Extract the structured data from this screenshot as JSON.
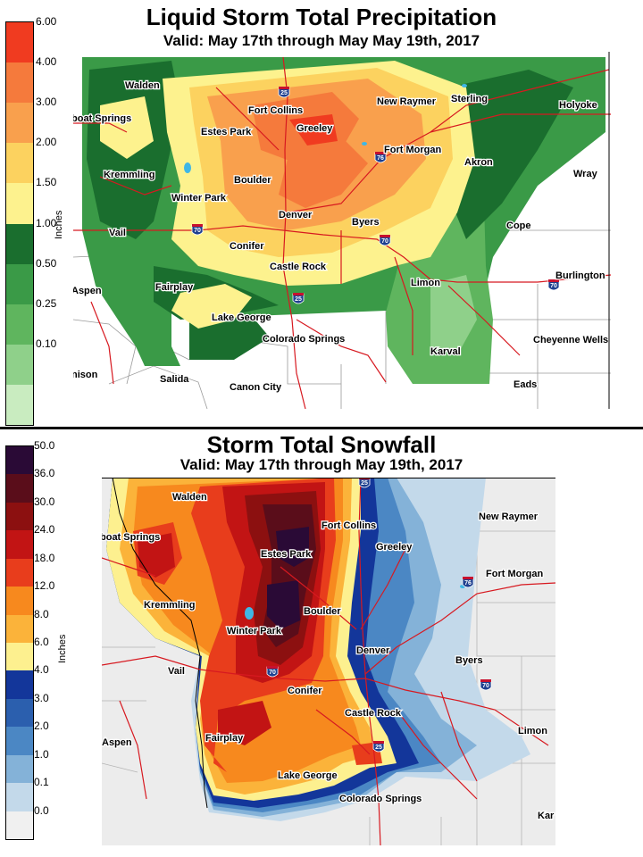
{
  "top": {
    "title": "Liquid Storm Total Precipitation",
    "subtitle": "Valid: May 17th through May May 19th, 2017",
    "unit": "Inches",
    "legend": [
      {
        "label": "6.00",
        "color": "#f03b20"
      },
      {
        "label": "4.00",
        "color": "#f57a3c"
      },
      {
        "label": "3.00",
        "color": "#f9a04d"
      },
      {
        "label": "2.00",
        "color": "#fcd25f"
      },
      {
        "label": "1.50",
        "color": "#fdf28e"
      },
      {
        "label": "1.00",
        "color": "#1a6e2e"
      },
      {
        "label": "0.50",
        "color": "#3a9a47"
      },
      {
        "label": "0.25",
        "color": "#5fb55e"
      },
      {
        "label": "0.10",
        "color": "#8fd08a"
      },
      {
        "label": "",
        "color": "#c9ecc0"
      }
    ],
    "cities": [
      "Walden",
      "boat Springs",
      "Fort Collins",
      "Greeley",
      "Estes Park",
      "New Raymer",
      "Sterling",
      "Holyoke",
      "Fort Morgan",
      "Akron",
      "Kremmling",
      "Boulder",
      "Wray",
      "Winter Park",
      "Denver",
      "Byers",
      "Vail",
      "Conifer",
      "Cope",
      "Castle Rock",
      "Burlington",
      "Aspen",
      "Fairplay",
      "Limon",
      "Lake George",
      "Colorado Springs",
      "Cheyenne Wells",
      "Karval",
      "nison",
      "Salida",
      "Canon City",
      "Eads"
    ],
    "shields": [
      "25",
      "76",
      "70",
      "70",
      "25",
      "70"
    ]
  },
  "bottom": {
    "title": "Storm Total Snowfall",
    "subtitle": "Valid: May 17th through May 19th, 2017",
    "unit": "Inches",
    "legend": [
      {
        "label": "50.0",
        "color": "#2a0a36"
      },
      {
        "label": "36.0",
        "color": "#5a0d1a"
      },
      {
        "label": "30.0",
        "color": "#8c1010"
      },
      {
        "label": "24.0",
        "color": "#c21414"
      },
      {
        "label": "18.0",
        "color": "#e83d1c"
      },
      {
        "label": "12.0",
        "color": "#f7891e"
      },
      {
        "label": "8.0",
        "color": "#fbb33a"
      },
      {
        "label": "6.0",
        "color": "#fdf08f"
      },
      {
        "label": "4.0",
        "color": "#13369a"
      },
      {
        "label": "3.0",
        "color": "#2b5fae"
      },
      {
        "label": "2.0",
        "color": "#4b87c4"
      },
      {
        "label": "1.0",
        "color": "#84b2d8"
      },
      {
        "label": "0.1",
        "color": "#c3d9ea"
      },
      {
        "label": "0.0",
        "color": "#f0f0f0"
      }
    ],
    "cities": [
      "Walden",
      "boat Springs",
      "Fort Collins",
      "Estes Park",
      "Greeley",
      "New Raymer",
      "Fort Morgan",
      "Kremmling",
      "Boulder",
      "Winter Park",
      "Denver",
      "Byers",
      "Vail",
      "Conifer",
      "Castle Rock",
      "Limon",
      "Aspen",
      "Fairplay",
      "Lake George",
      "Colorado Springs",
      "Kar"
    ],
    "shields": [
      "25",
      "76",
      "70",
      "70",
      "25"
    ]
  }
}
